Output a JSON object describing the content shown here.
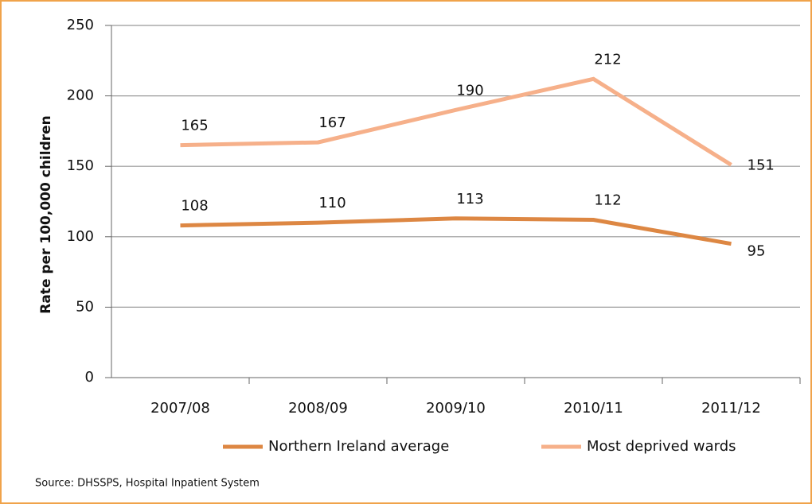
{
  "chart_data": {
    "type": "line",
    "y_label": "Rate per 100,000 children",
    "categories": [
      "2007/08",
      "2008/09",
      "2009/10",
      "2010/11",
      "2011/12"
    ],
    "series": [
      {
        "name": "Northern Ireland average",
        "color": "#dd8743",
        "values": [
          108,
          110,
          113,
          112,
          95
        ]
      },
      {
        "name": "Most deprived wards",
        "color": "#f6b08a",
        "values": [
          165,
          167,
          190,
          212,
          151
        ]
      }
    ],
    "ylim": [
      0,
      250
    ],
    "yticks": [
      0,
      50,
      100,
      150,
      200,
      250
    ],
    "grid": true,
    "source": "Source: DHSSPS, Hospital Inpatient System"
  }
}
